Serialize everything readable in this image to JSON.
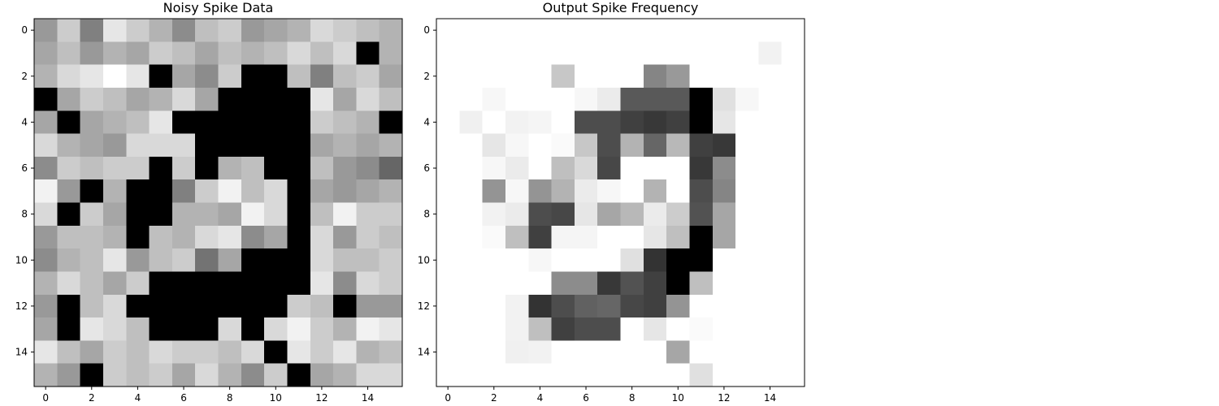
{
  "chart_data": [
    {
      "type": "heatmap",
      "title": "Noisy Spike Data",
      "colormap": "gray",
      "grid": false,
      "x_ticks": [
        "0",
        "2",
        "4",
        "6",
        "8",
        "10",
        "12",
        "14"
      ],
      "y_ticks": [
        "0",
        "2",
        "4",
        "6",
        "8",
        "10",
        "12",
        "14"
      ],
      "xlim": [
        -0.5,
        15.5
      ],
      "ylim": [
        15.5,
        -0.5
      ],
      "value_range": [
        0,
        1
      ],
      "values": [
        [
          0.6,
          0.8,
          0.5,
          0.9,
          0.8,
          0.7,
          0.55,
          0.75,
          0.8,
          0.6,
          0.65,
          0.7,
          0.85,
          0.8,
          0.75,
          0.7
        ],
        [
          0.65,
          0.75,
          0.6,
          0.7,
          0.65,
          0.8,
          0.75,
          0.65,
          0.75,
          0.7,
          0.75,
          0.85,
          0.75,
          0.85,
          0.0,
          0.7
        ],
        [
          0.7,
          0.85,
          0.9,
          1.0,
          0.9,
          0.0,
          0.65,
          0.55,
          0.8,
          0.0,
          0.0,
          0.75,
          0.5,
          0.75,
          0.8,
          0.65
        ],
        [
          0.0,
          0.65,
          0.8,
          0.75,
          0.65,
          0.7,
          0.85,
          0.65,
          0.0,
          0.0,
          0.0,
          0.0,
          0.9,
          0.65,
          0.85,
          0.75
        ],
        [
          0.65,
          0.0,
          0.65,
          0.7,
          0.75,
          0.9,
          0.0,
          0.0,
          0.0,
          0.0,
          0.0,
          0.0,
          0.8,
          0.75,
          0.7,
          0.0
        ],
        [
          0.85,
          0.7,
          0.65,
          0.6,
          0.85,
          0.85,
          0.85,
          0.0,
          0.0,
          0.0,
          0.0,
          0.0,
          0.65,
          0.7,
          0.65,
          0.7
        ],
        [
          0.55,
          0.8,
          0.75,
          0.8,
          0.8,
          0.0,
          0.8,
          0.0,
          0.7,
          0.75,
          0.0,
          0.0,
          0.75,
          0.6,
          0.55,
          0.4
        ],
        [
          0.95,
          0.6,
          0.0,
          0.7,
          0.0,
          0.0,
          0.5,
          0.8,
          0.95,
          0.75,
          0.85,
          0.0,
          0.65,
          0.6,
          0.65,
          0.7
        ],
        [
          0.85,
          0.0,
          0.8,
          0.65,
          0.0,
          0.0,
          0.7,
          0.7,
          0.65,
          0.95,
          0.85,
          0.0,
          0.75,
          0.95,
          0.8,
          0.8
        ],
        [
          0.6,
          0.75,
          0.75,
          0.7,
          0.0,
          0.75,
          0.7,
          0.85,
          0.9,
          0.55,
          0.65,
          0.0,
          0.85,
          0.6,
          0.8,
          0.75
        ],
        [
          0.55,
          0.7,
          0.75,
          0.9,
          0.6,
          0.75,
          0.8,
          0.45,
          0.65,
          0.0,
          0.0,
          0.0,
          0.85,
          0.75,
          0.75,
          0.8
        ],
        [
          0.7,
          0.85,
          0.75,
          0.65,
          0.8,
          0.0,
          0.0,
          0.0,
          0.0,
          0.0,
          0.0,
          0.0,
          0.9,
          0.55,
          0.85,
          0.8
        ],
        [
          0.6,
          0.0,
          0.75,
          0.85,
          0.0,
          0.0,
          0.0,
          0.0,
          0.0,
          0.0,
          0.0,
          0.8,
          0.75,
          0.0,
          0.6,
          0.6
        ],
        [
          0.65,
          0.0,
          0.9,
          0.85,
          0.75,
          0.0,
          0.0,
          0.0,
          0.85,
          0.0,
          0.85,
          0.95,
          0.8,
          0.7,
          0.95,
          0.9
        ],
        [
          0.9,
          0.75,
          0.65,
          0.8,
          0.75,
          0.85,
          0.8,
          0.8,
          0.75,
          0.85,
          0.0,
          0.9,
          0.8,
          0.9,
          0.7,
          0.75
        ],
        [
          0.7,
          0.6,
          0.0,
          0.8,
          0.75,
          0.8,
          0.65,
          0.85,
          0.7,
          0.55,
          0.8,
          0.0,
          0.65,
          0.7,
          0.85,
          0.85
        ]
      ]
    },
    {
      "type": "heatmap",
      "title": "Output Spike Frequency",
      "colormap": "gray_r",
      "grid": false,
      "x_ticks": [
        "0",
        "2",
        "4",
        "6",
        "8",
        "10",
        "12",
        "14"
      ],
      "y_ticks": [
        "0",
        "2",
        "4",
        "6",
        "8",
        "10",
        "12",
        "14"
      ],
      "xlim": [
        -0.5,
        15.5
      ],
      "ylim": [
        15.5,
        -0.5
      ],
      "value_range": [
        0,
        1
      ],
      "values": [
        [
          0.0,
          0.0,
          0.0,
          0.0,
          0.0,
          0.0,
          0.0,
          0.0,
          0.0,
          0.0,
          0.0,
          0.0,
          0.0,
          0.0,
          0.0,
          0.0
        ],
        [
          0.0,
          0.0,
          0.0,
          0.0,
          0.0,
          0.0,
          0.0,
          0.0,
          0.0,
          0.0,
          0.0,
          0.0,
          0.0,
          0.0,
          0.05,
          0.0
        ],
        [
          0.0,
          0.0,
          0.0,
          0.0,
          0.0,
          0.22,
          0.0,
          0.0,
          0.0,
          0.48,
          0.4,
          0.0,
          0.0,
          0.0,
          0.0,
          0.0
        ],
        [
          0.0,
          0.0,
          0.03,
          0.0,
          0.0,
          0.0,
          0.03,
          0.08,
          0.65,
          0.65,
          0.65,
          1.0,
          0.12,
          0.03,
          0.0,
          0.0
        ],
        [
          0.0,
          0.06,
          0.0,
          0.05,
          0.04,
          0.0,
          0.7,
          0.7,
          0.75,
          0.78,
          0.75,
          1.0,
          0.1,
          0.0,
          0.0,
          0.0
        ],
        [
          0.0,
          0.0,
          0.1,
          0.03,
          0.0,
          0.02,
          0.22,
          0.7,
          0.3,
          0.6,
          0.28,
          0.75,
          0.78,
          0.0,
          0.0,
          0.0
        ],
        [
          0.0,
          0.0,
          0.03,
          0.08,
          0.0,
          0.25,
          0.15,
          0.72,
          0.0,
          0.0,
          0.0,
          0.78,
          0.45,
          0.0,
          0.0,
          0.0
        ],
        [
          0.0,
          0.0,
          0.42,
          0.03,
          0.42,
          0.3,
          0.08,
          0.03,
          0.0,
          0.3,
          0.0,
          0.7,
          0.48,
          0.0,
          0.0,
          0.0
        ],
        [
          0.0,
          0.0,
          0.05,
          0.08,
          0.7,
          0.72,
          0.1,
          0.35,
          0.28,
          0.08,
          0.2,
          0.68,
          0.35,
          0.0,
          0.0,
          0.0
        ],
        [
          0.0,
          0.0,
          0.02,
          0.25,
          0.75,
          0.04,
          0.04,
          0.0,
          0.0,
          0.1,
          0.25,
          1.0,
          0.35,
          0.0,
          0.0,
          0.0
        ],
        [
          0.0,
          0.0,
          0.0,
          0.0,
          0.03,
          0.0,
          0.0,
          0.0,
          0.12,
          0.8,
          1.0,
          1.0,
          0.0,
          0.0,
          0.0,
          0.0
        ],
        [
          0.0,
          0.0,
          0.0,
          0.0,
          0.0,
          0.45,
          0.45,
          0.78,
          0.68,
          0.75,
          1.0,
          0.25,
          0.0,
          0.0,
          0.0,
          0.0
        ],
        [
          0.0,
          0.0,
          0.0,
          0.05,
          0.8,
          0.7,
          0.62,
          0.6,
          0.72,
          0.75,
          0.42,
          0.0,
          0.0,
          0.0,
          0.0,
          0.0
        ],
        [
          0.0,
          0.0,
          0.0,
          0.05,
          0.25,
          0.75,
          0.7,
          0.7,
          0.0,
          0.1,
          0.0,
          0.02,
          0.0,
          0.0,
          0.0,
          0.0
        ],
        [
          0.0,
          0.0,
          0.0,
          0.06,
          0.05,
          0.0,
          0.0,
          0.0,
          0.0,
          0.0,
          0.35,
          0.0,
          0.0,
          0.0,
          0.0,
          0.0
        ],
        [
          0.0,
          0.0,
          0.0,
          0.0,
          0.0,
          0.0,
          0.0,
          0.0,
          0.0,
          0.0,
          0.0,
          0.12,
          0.0,
          0.0,
          0.0,
          0.0
        ]
      ]
    }
  ]
}
